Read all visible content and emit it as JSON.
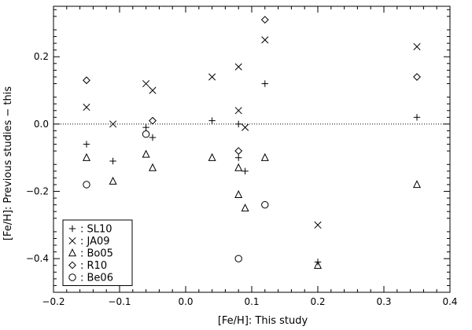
{
  "chart_data": {
    "type": "scatter",
    "title": "",
    "xlabel": "[Fe/H]: This study",
    "ylabel": "[Fe/H]: Previous studies − this",
    "xlim": [
      -0.2,
      0.4
    ],
    "ylim": [
      -0.5,
      0.35
    ],
    "x_ticks": [
      "−0.2",
      "−0.1",
      "0.0",
      "0.1",
      "0.2",
      "0.3",
      "0.4"
    ],
    "y_ticks": [
      "−0.4",
      "−0.2",
      "0.0",
      "0.2"
    ],
    "reference_line": {
      "y": 0.0,
      "style": "dotted"
    },
    "legend_position": "bottom-left",
    "series": [
      {
        "name": "SL10",
        "marker": "plus",
        "points": [
          {
            "x": -0.15,
            "y": -0.06
          },
          {
            "x": -0.11,
            "y": -0.11
          },
          {
            "x": -0.06,
            "y": -0.01
          },
          {
            "x": -0.05,
            "y": -0.04
          },
          {
            "x": 0.04,
            "y": 0.01
          },
          {
            "x": 0.08,
            "y": 0.0
          },
          {
            "x": 0.08,
            "y": -0.1
          },
          {
            "x": 0.09,
            "y": -0.14
          },
          {
            "x": 0.12,
            "y": 0.12
          },
          {
            "x": 0.2,
            "y": -0.41
          },
          {
            "x": 0.35,
            "y": 0.02
          }
        ]
      },
      {
        "name": "JA09",
        "marker": "cross",
        "points": [
          {
            "x": -0.15,
            "y": 0.05
          },
          {
            "x": -0.11,
            "y": 0.0
          },
          {
            "x": -0.06,
            "y": 0.12
          },
          {
            "x": -0.05,
            "y": 0.1
          },
          {
            "x": 0.04,
            "y": 0.14
          },
          {
            "x": 0.08,
            "y": 0.17
          },
          {
            "x": 0.08,
            "y": 0.04
          },
          {
            "x": 0.09,
            "y": -0.01
          },
          {
            "x": 0.12,
            "y": 0.25
          },
          {
            "x": 0.2,
            "y": -0.3
          },
          {
            "x": 0.35,
            "y": 0.23
          }
        ]
      },
      {
        "name": "Bo05",
        "marker": "triangle",
        "points": [
          {
            "x": -0.15,
            "y": -0.1
          },
          {
            "x": -0.11,
            "y": -0.17
          },
          {
            "x": -0.06,
            "y": -0.09
          },
          {
            "x": -0.05,
            "y": -0.13
          },
          {
            "x": 0.04,
            "y": -0.1
          },
          {
            "x": 0.08,
            "y": -0.13
          },
          {
            "x": 0.08,
            "y": -0.21
          },
          {
            "x": 0.09,
            "y": -0.25
          },
          {
            "x": 0.12,
            "y": -0.1
          },
          {
            "x": 0.2,
            "y": -0.42
          },
          {
            "x": 0.35,
            "y": -0.18
          }
        ]
      },
      {
        "name": "R10",
        "marker": "diamond",
        "points": [
          {
            "x": -0.15,
            "y": 0.13
          },
          {
            "x": -0.05,
            "y": 0.01
          },
          {
            "x": 0.08,
            "y": -0.08
          },
          {
            "x": 0.12,
            "y": 0.31
          },
          {
            "x": 0.35,
            "y": 0.14
          }
        ]
      },
      {
        "name": "Be06",
        "marker": "circle",
        "points": [
          {
            "x": -0.15,
            "y": -0.18
          },
          {
            "x": -0.06,
            "y": -0.03
          },
          {
            "x": 0.08,
            "y": -0.4
          },
          {
            "x": 0.12,
            "y": -0.24
          }
        ]
      }
    ]
  },
  "legend": {
    "items": [
      {
        "marker": "plus",
        "label": ": SL10"
      },
      {
        "marker": "cross",
        "label": ": JA09"
      },
      {
        "marker": "triangle",
        "label": ": Bo05"
      },
      {
        "marker": "diamond",
        "label": ": R10"
      },
      {
        "marker": "circle",
        "label": ": Be06"
      }
    ]
  }
}
